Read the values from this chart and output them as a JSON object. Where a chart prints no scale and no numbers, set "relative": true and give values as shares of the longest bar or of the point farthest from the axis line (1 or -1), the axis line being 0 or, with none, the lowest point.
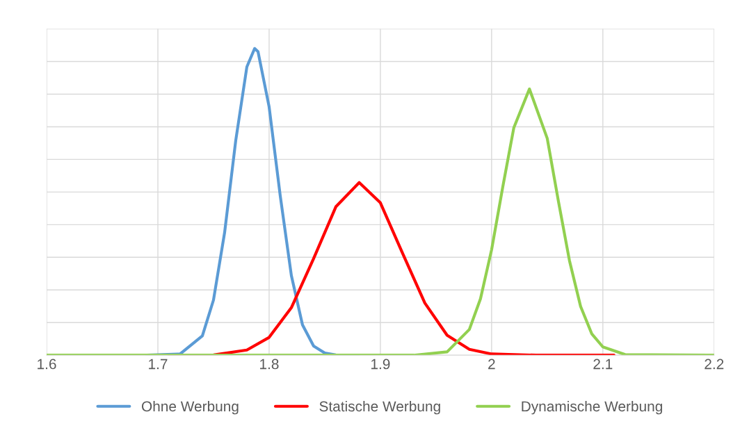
{
  "chart_data": {
    "type": "line",
    "relative": true,
    "xlim": [
      1.6,
      2.2
    ],
    "xticks": [
      1.6,
      1.7,
      1.8,
      1.9,
      {
        "value": 2.0,
        "label": "2"
      },
      2.1,
      2.2
    ],
    "grid": true,
    "legend": "bottom",
    "marker": "none",
    "line_style": "solid",
    "series": [
      {
        "name": "Ohne Werbung",
        "color": "#5b9bd5",
        "x": [
          1.69,
          1.72,
          1.74,
          1.75,
          1.76,
          1.77,
          1.78,
          1.787,
          1.79,
          1.8,
          1.81,
          1.82,
          1.83,
          1.84,
          1.85,
          1.86,
          1.88
        ],
        "values": [
          0,
          0.004,
          0.063,
          0.18,
          0.4,
          0.7,
          0.94,
          1,
          0.99,
          0.81,
          0.52,
          0.26,
          0.099,
          0.03,
          0.007,
          0.001,
          0
        ]
      },
      {
        "name": "Statische Werbung",
        "color": "#ff0000",
        "x": [
          1.71,
          1.75,
          1.78,
          1.8,
          1.82,
          1.84,
          1.86,
          1.881,
          1.9,
          1.92,
          1.94,
          1.96,
          1.98,
          2.0,
          2.04,
          2.11
        ],
        "values": [
          0,
          0.001,
          0.017,
          0.058,
          0.155,
          0.315,
          0.484,
          0.563,
          0.497,
          0.332,
          0.17,
          0.065,
          0.019,
          0.004,
          0,
          0
        ]
      },
      {
        "name": "Dynamische Werbung",
        "color": "#92d050",
        "x": [
          1.6,
          1.93,
          1.96,
          1.98,
          1.99,
          2.0,
          2.01,
          2.02,
          2.034,
          2.05,
          2.06,
          2.07,
          2.08,
          2.09,
          2.1,
          2.12,
          2.2
        ],
        "values": [
          0,
          0,
          0.011,
          0.084,
          0.184,
          0.344,
          0.548,
          0.742,
          0.868,
          0.707,
          0.503,
          0.308,
          0.159,
          0.07,
          0.027,
          0.002,
          0
        ]
      }
    ]
  }
}
